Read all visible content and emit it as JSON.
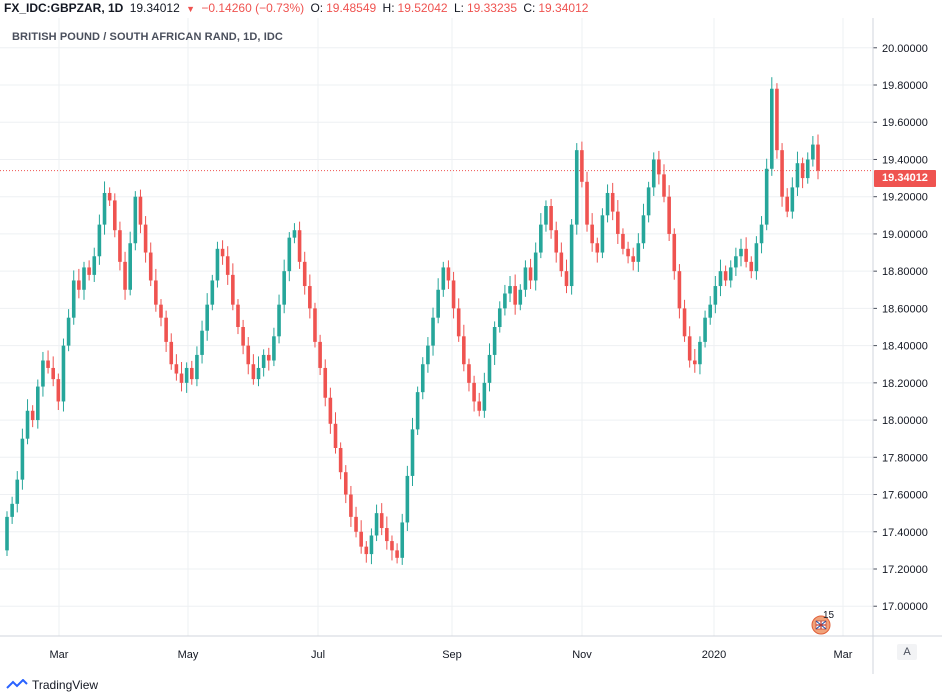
{
  "header": {
    "symbol": "FX_IDC:GBPZAR, 1D",
    "last": "19.34012",
    "change": "−0.14260 (−0.73%)",
    "o_label": "O:",
    "o_value": "19.48549",
    "h_label": "H:",
    "h_value": "19.52042",
    "l_label": "L:",
    "l_value": "19.33235",
    "c_label": "C:",
    "c_value": "19.34012"
  },
  "current_price_label": "19.34012",
  "scale_mode": "A",
  "event_badge": "15",
  "brand": "TradingView",
  "colors": {
    "up": "#26a69a",
    "down": "#ef5350",
    "grid": "#eef0f3",
    "price_line": "#ef5350"
  },
  "chart_data": {
    "type": "candlestick",
    "title": "BRITISH POUND / SOUTH AFRICAN RAND, 1D, IDC",
    "ylim": [
      16.84,
      20.16
    ],
    "y_ticks": [
      "20.00000",
      "19.80000",
      "19.60000",
      "19.40000",
      "19.20000",
      "19.00000",
      "18.80000",
      "18.60000",
      "18.40000",
      "18.20000",
      "18.00000",
      "17.80000",
      "17.60000",
      "17.40000",
      "17.20000",
      "17.00000"
    ],
    "x_ticks": [
      "Mar",
      "May",
      "Jul",
      "Sep",
      "Nov",
      "2020",
      "Mar"
    ],
    "current_price": 19.34012,
    "candles": [
      [
        17.3,
        17.48
      ],
      [
        17.48,
        17.55
      ],
      [
        17.55,
        17.68
      ],
      [
        17.68,
        17.9
      ],
      [
        17.9,
        18.05
      ],
      [
        18.05,
        18.0
      ],
      [
        18.0,
        18.18
      ],
      [
        18.18,
        18.32
      ],
      [
        18.32,
        18.28
      ],
      [
        18.28,
        18.22
      ],
      [
        18.22,
        18.1
      ],
      [
        18.1,
        18.4
      ],
      [
        18.4,
        18.55
      ],
      [
        18.55,
        18.75
      ],
      [
        18.75,
        18.7
      ],
      [
        18.7,
        18.82
      ],
      [
        18.82,
        18.78
      ],
      [
        18.78,
        18.88
      ],
      [
        18.88,
        19.05
      ],
      [
        19.05,
        19.22
      ],
      [
        19.22,
        19.18
      ],
      [
        19.18,
        19.02
      ],
      [
        19.02,
        18.85
      ],
      [
        18.85,
        18.7
      ],
      [
        18.7,
        18.95
      ],
      [
        18.95,
        19.2
      ],
      [
        19.2,
        19.05
      ],
      [
        19.05,
        18.9
      ],
      [
        18.9,
        18.75
      ],
      [
        18.75,
        18.62
      ],
      [
        18.62,
        18.55
      ],
      [
        18.55,
        18.42
      ],
      [
        18.42,
        18.3
      ],
      [
        18.3,
        18.25
      ],
      [
        18.25,
        18.2
      ],
      [
        18.2,
        18.28
      ],
      [
        18.28,
        18.22
      ],
      [
        18.22,
        18.35
      ],
      [
        18.35,
        18.48
      ],
      [
        18.48,
        18.62
      ],
      [
        18.62,
        18.75
      ],
      [
        18.75,
        18.92
      ],
      [
        18.92,
        18.88
      ],
      [
        18.88,
        18.78
      ],
      [
        18.78,
        18.62
      ],
      [
        18.62,
        18.5
      ],
      [
        18.5,
        18.4
      ],
      [
        18.4,
        18.3
      ],
      [
        18.3,
        18.22
      ],
      [
        18.22,
        18.28
      ],
      [
        18.28,
        18.35
      ],
      [
        18.35,
        18.32
      ],
      [
        18.32,
        18.45
      ],
      [
        18.45,
        18.62
      ],
      [
        18.62,
        18.8
      ],
      [
        18.8,
        18.98
      ],
      [
        18.98,
        19.02
      ],
      [
        19.02,
        18.85
      ],
      [
        18.85,
        18.72
      ],
      [
        18.72,
        18.6
      ],
      [
        18.6,
        18.42
      ],
      [
        18.42,
        18.28
      ],
      [
        18.28,
        18.12
      ],
      [
        18.12,
        17.98
      ],
      [
        17.98,
        17.85
      ],
      [
        17.85,
        17.72
      ],
      [
        17.72,
        17.6
      ],
      [
        17.6,
        17.48
      ],
      [
        17.48,
        17.4
      ],
      [
        17.4,
        17.32
      ],
      [
        17.32,
        17.28
      ],
      [
        17.28,
        17.38
      ],
      [
        17.38,
        17.5
      ],
      [
        17.5,
        17.42
      ],
      [
        17.42,
        17.35
      ],
      [
        17.35,
        17.3
      ],
      [
        17.3,
        17.26
      ],
      [
        17.26,
        17.45
      ],
      [
        17.45,
        17.7
      ],
      [
        17.7,
        17.95
      ],
      [
        17.95,
        18.15
      ],
      [
        18.15,
        18.3
      ],
      [
        18.3,
        18.4
      ],
      [
        18.4,
        18.55
      ],
      [
        18.55,
        18.7
      ],
      [
        18.7,
        18.82
      ],
      [
        18.82,
        18.75
      ],
      [
        18.75,
        18.6
      ],
      [
        18.6,
        18.45
      ],
      [
        18.45,
        18.3
      ],
      [
        18.3,
        18.2
      ],
      [
        18.2,
        18.1
      ],
      [
        18.1,
        18.05
      ],
      [
        18.05,
        18.2
      ],
      [
        18.2,
        18.35
      ],
      [
        18.35,
        18.5
      ],
      [
        18.5,
        18.6
      ],
      [
        18.6,
        18.68
      ],
      [
        18.68,
        18.72
      ],
      [
        18.72,
        18.62
      ],
      [
        18.62,
        18.7
      ],
      [
        18.7,
        18.82
      ],
      [
        18.82,
        18.75
      ],
      [
        18.75,
        18.9
      ],
      [
        18.9,
        19.05
      ],
      [
        19.05,
        19.15
      ],
      [
        19.15,
        19.02
      ],
      [
        19.02,
        18.9
      ],
      [
        18.9,
        18.8
      ],
      [
        18.8,
        18.72
      ],
      [
        18.72,
        19.05
      ],
      [
        19.05,
        19.45
      ],
      [
        19.45,
        19.28
      ],
      [
        19.28,
        19.05
      ],
      [
        19.05,
        18.95
      ],
      [
        18.95,
        18.9
      ],
      [
        18.9,
        19.1
      ],
      [
        19.1,
        19.22
      ],
      [
        19.22,
        19.12
      ],
      [
        19.12,
        19.0
      ],
      [
        19.0,
        18.92
      ],
      [
        18.92,
        18.88
      ],
      [
        18.88,
        18.85
      ],
      [
        18.85,
        18.95
      ],
      [
        18.95,
        19.1
      ],
      [
        19.1,
        19.25
      ],
      [
        19.25,
        19.4
      ],
      [
        19.4,
        19.32
      ],
      [
        19.32,
        19.2
      ],
      [
        19.2,
        19.0
      ],
      [
        19.0,
        18.8
      ],
      [
        18.8,
        18.6
      ],
      [
        18.6,
        18.45
      ],
      [
        18.45,
        18.32
      ],
      [
        18.32,
        18.3
      ],
      [
        18.3,
        18.42
      ],
      [
        18.42,
        18.55
      ],
      [
        18.55,
        18.62
      ],
      [
        18.62,
        18.72
      ],
      [
        18.72,
        18.8
      ],
      [
        18.8,
        18.75
      ],
      [
        18.75,
        18.82
      ],
      [
        18.82,
        18.88
      ],
      [
        18.88,
        18.92
      ],
      [
        18.92,
        18.85
      ],
      [
        18.85,
        18.8
      ],
      [
        18.8,
        18.95
      ],
      [
        18.95,
        19.05
      ],
      [
        19.05,
        19.35
      ],
      [
        19.35,
        19.78
      ],
      [
        19.78,
        19.45
      ],
      [
        19.45,
        19.2
      ],
      [
        19.2,
        19.12
      ],
      [
        19.12,
        19.25
      ],
      [
        19.25,
        19.38
      ],
      [
        19.38,
        19.3
      ],
      [
        19.3,
        19.4
      ],
      [
        19.4,
        19.48
      ],
      [
        19.48,
        19.34
      ]
    ]
  }
}
